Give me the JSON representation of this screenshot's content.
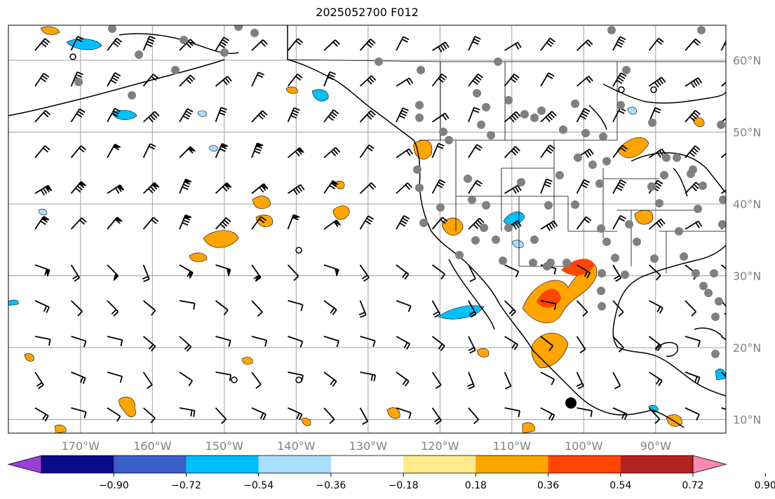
{
  "title": "2025052700 F012",
  "map": {
    "lat_labels": [
      "60°N",
      "50°N",
      "40°N",
      "30°N",
      "20°N",
      "10°N"
    ],
    "lat_values": [
      60,
      50,
      40,
      30,
      20,
      10
    ],
    "lon_labels": [
      "170°W",
      "160°W",
      "150°W",
      "140°W",
      "130°W",
      "120°W",
      "110°W",
      "100°W",
      "90°W"
    ],
    "lon_values": [
      -170,
      -160,
      -150,
      -140,
      -130,
      -120,
      -110,
      -100,
      -90
    ],
    "extent": {
      "lon_min": -180,
      "lon_max": -80,
      "lat_min": 8,
      "lat_max": 65
    },
    "gridlines": true,
    "colors": {
      "land_outline": "#000000",
      "grid": "#a0a0a0",
      "station": "#808080"
    }
  },
  "colorbar": {
    "tick_labels": [
      "−0.90",
      "−0.72",
      "−0.54",
      "−0.36",
      "−0.18",
      "0.18",
      "0.36",
      "0.54",
      "0.72",
      "0.90"
    ],
    "colors": [
      "#9a3ed6",
      "#0a0a8c",
      "#3a5ec8",
      "#00bfff",
      "#aadeff",
      "#ffffff",
      "#ffeb8a",
      "#ffa500",
      "#ff4500",
      "#b22222",
      "#ff88b0"
    ],
    "extend": "both"
  }
}
